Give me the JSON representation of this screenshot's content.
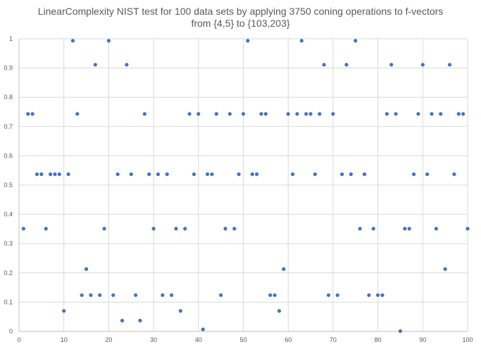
{
  "chart_data": {
    "type": "scatter",
    "title": [
      "LinearComplexity NIST test for 100 data sets by applying 3750 coning operations to f-vectors",
      "from {4,5} to {103,203}"
    ],
    "xlim": [
      0,
      100
    ],
    "ylim": [
      0,
      1
    ],
    "x_ticks": [
      "0",
      "10",
      "20",
      "30",
      "40",
      "50",
      "60",
      "70",
      "80",
      "90",
      "100"
    ],
    "y_ticks": [
      "0",
      "0.1",
      "0.2",
      "0.3",
      "0.4",
      "0.5",
      "0.6",
      "0.7",
      "0.8",
      "0.9",
      "1"
    ],
    "grid": true,
    "legend": false,
    "marker_color": "#4472C4",
    "x": [
      1,
      2,
      3,
      4,
      5,
      6,
      7,
      8,
      9,
      10,
      11,
      12,
      13,
      14,
      15,
      16,
      17,
      18,
      19,
      20,
      21,
      22,
      23,
      24,
      25,
      26,
      27,
      28,
      29,
      30,
      31,
      32,
      33,
      34,
      35,
      36,
      37,
      38,
      39,
      40,
      41,
      42,
      43,
      44,
      45,
      46,
      47,
      48,
      49,
      50,
      51,
      52,
      53,
      54,
      55,
      56,
      57,
      58,
      59,
      60,
      61,
      62,
      63,
      64,
      65,
      66,
      67,
      68,
      69,
      70,
      71,
      72,
      73,
      74,
      75,
      76,
      77,
      78,
      79,
      80,
      81,
      82,
      83,
      84,
      85,
      86,
      87,
      88,
      89,
      90,
      91,
      92,
      93,
      94,
      95,
      96,
      97,
      98,
      99,
      100
    ],
    "y": [
      0.351,
      0.743,
      0.743,
      0.537,
      0.537,
      0.351,
      0.537,
      0.537,
      0.537,
      0.07,
      0.537,
      0.993,
      0.743,
      0.124,
      0.213,
      0.124,
      0.911,
      0.124,
      0.351,
      0.993,
      0.124,
      0.537,
      0.037,
      0.911,
      0.537,
      0.124,
      0.037,
      0.743,
      0.537,
      0.351,
      0.537,
      0.124,
      0.537,
      0.124,
      0.351,
      0.07,
      0.351,
      0.743,
      0.537,
      0.743,
      0.007,
      0.537,
      0.537,
      0.743,
      0.124,
      0.351,
      0.743,
      0.351,
      0.537,
      0.743,
      0.993,
      0.537,
      0.537,
      0.743,
      0.743,
      0.124,
      0.124,
      0.07,
      0.213,
      0.743,
      0.537,
      0.743,
      0.993,
      0.743,
      0.743,
      0.537,
      0.743,
      0.911,
      0.124,
      0.743,
      0.124,
      0.537,
      0.911,
      0.537,
      0.993,
      0.351,
      0.537,
      0.124,
      0.351,
      0.124,
      0.124,
      0.743,
      0.911,
      0.743,
      0.001,
      0.351,
      0.351,
      0.537,
      0.743,
      0.911,
      0.537,
      0.743,
      0.351,
      0.743,
      0.213,
      0.911,
      0.537,
      0.743,
      0.743,
      0.351
    ]
  }
}
